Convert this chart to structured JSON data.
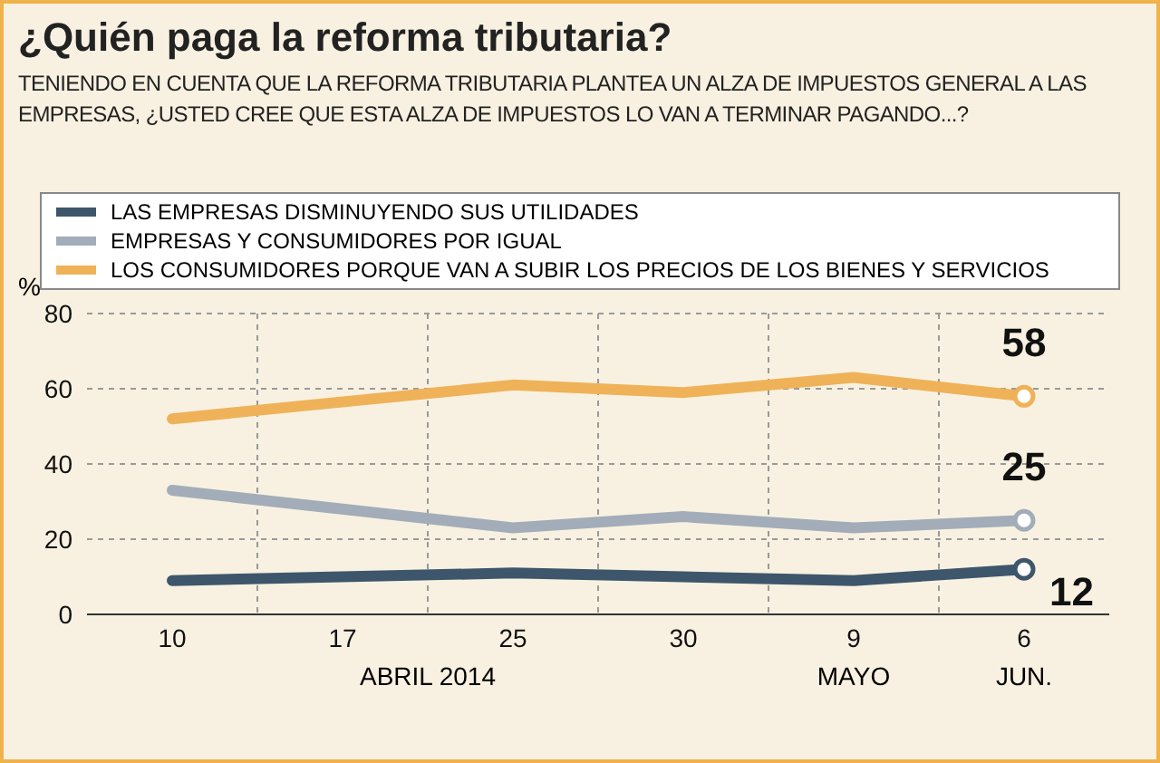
{
  "chart_data": {
    "type": "line",
    "title": "¿Quién paga la reforma tributaria?",
    "subtitle": "TENIENDO EN CUENTA QUE LA REFORMA TRIBUTARIA PLANTEA UN ALZA DE IMPUESTOS GENERAL A LAS EMPRESAS, ¿USTED CREE QUE ESTA ALZA DE IMPUESTOS LO VAN A TERMINAR PAGANDO...?",
    "ylabel": "%",
    "categories": [
      "10",
      "17",
      "25",
      "30",
      "9",
      "6"
    ],
    "annotations": [
      "ABRIL 2014",
      "MAYO",
      "JUN."
    ],
    "series": [
      {
        "name": "LAS EMPRESAS DISMINUYENDO SUS UTILIDADES",
        "color": "#3e566b",
        "values": [
          9,
          null,
          11,
          10,
          9,
          12
        ],
        "value_labels": [
          null,
          null,
          null,
          null,
          null,
          "12"
        ]
      },
      {
        "name": "EMPRESAS Y CONSUMIDORES POR IGUAL",
        "color": "#a2adb9",
        "values": [
          33,
          null,
          23,
          26,
          23,
          25
        ],
        "value_labels": [
          null,
          null,
          null,
          null,
          null,
          "25"
        ]
      },
      {
        "name": "LOS CONSUMIDORES PORQUE VAN A SUBIR LOS PRECIOS DE LOS BIENES Y SERVICIOS",
        "color": "#efb258",
        "values": [
          52,
          null,
          61,
          59,
          63,
          58
        ],
        "value_labels": [
          null,
          null,
          null,
          null,
          null,
          "58"
        ]
      }
    ],
    "ylim": [
      0,
      80
    ],
    "yticks": [
      0,
      20,
      40,
      60,
      80
    ],
    "grid": true,
    "legend": "top"
  }
}
